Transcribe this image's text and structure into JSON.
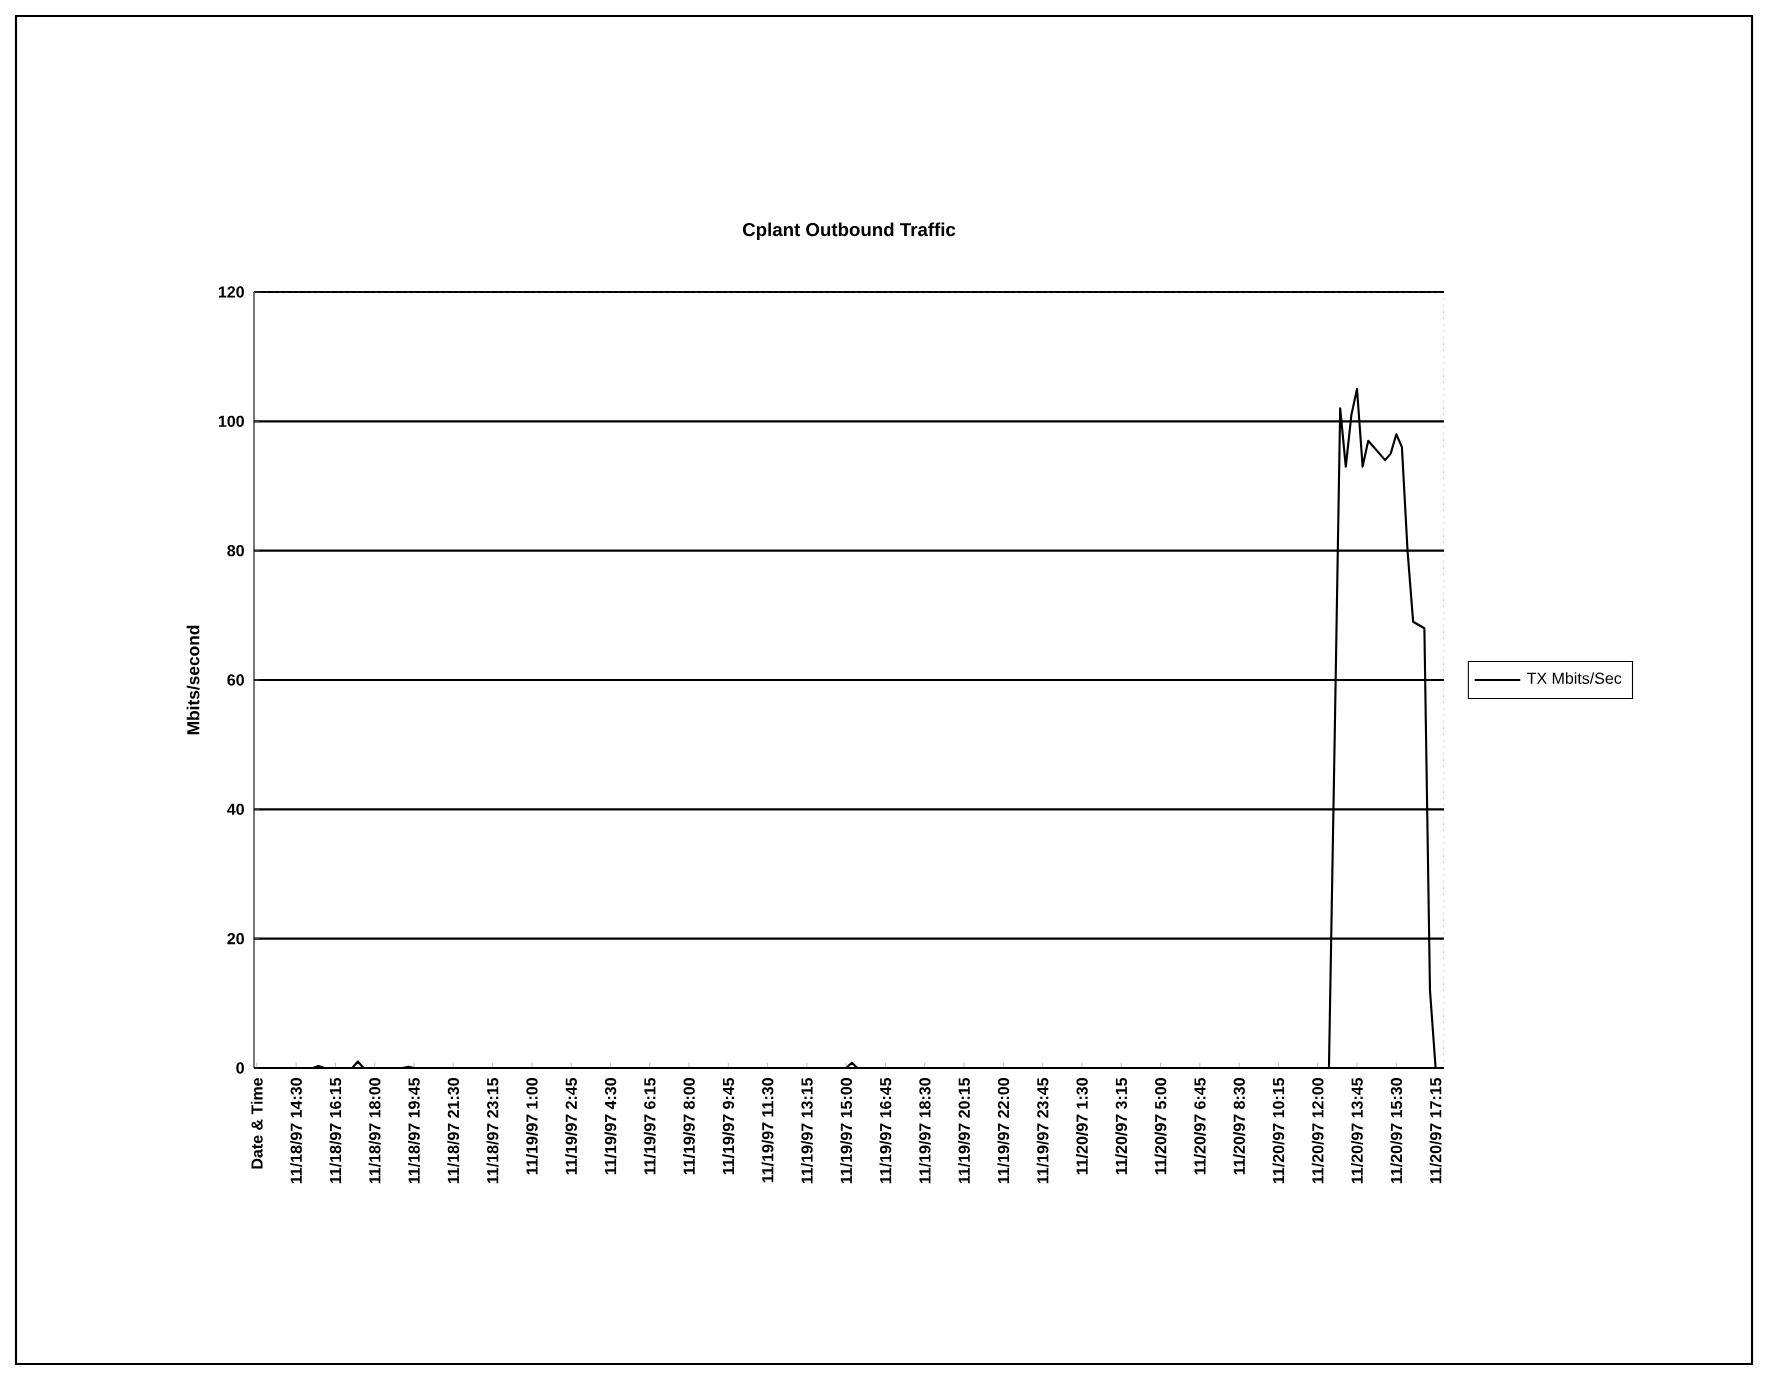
{
  "chart_data": {
    "type": "line",
    "title": "Cplant Outbound Traffic",
    "ylabel": "Mbits/second",
    "categories": [
      "Date & Time",
      null,
      null,
      null,
      null,
      null,
      null,
      "11/18/97 14:30",
      null,
      null,
      null,
      null,
      null,
      null,
      "11/18/97 16:15",
      null,
      null,
      null,
      null,
      null,
      null,
      "11/18/97 18:00",
      null,
      null,
      null,
      null,
      null,
      null,
      "11/18/97 19:45",
      null,
      null,
      null,
      null,
      null,
      null,
      "11/18/97 21:30",
      null,
      null,
      null,
      null,
      null,
      null,
      "11/18/97 23:15",
      null,
      null,
      null,
      null,
      null,
      null,
      "11/19/97 1:00",
      null,
      null,
      null,
      null,
      null,
      null,
      "11/19/97 2:45",
      null,
      null,
      null,
      null,
      null,
      null,
      "11/19/97 4:30",
      null,
      null,
      null,
      null,
      null,
      null,
      "11/19/97 6:15",
      null,
      null,
      null,
      null,
      null,
      null,
      "11/19/97 8:00",
      null,
      null,
      null,
      null,
      null,
      null,
      "11/19/97 9:45",
      null,
      null,
      null,
      null,
      null,
      null,
      "11/19/97 11:30",
      null,
      null,
      null,
      null,
      null,
      null,
      "11/19/97 13:15",
      null,
      null,
      null,
      null,
      null,
      null,
      "11/19/97 15:00",
      null,
      null,
      null,
      null,
      null,
      null,
      "11/19/97 16:45",
      null,
      null,
      null,
      null,
      null,
      null,
      "11/19/97 18:30",
      null,
      null,
      null,
      null,
      null,
      null,
      "11/19/97 20:15",
      null,
      null,
      null,
      null,
      null,
      null,
      "11/19/97 22:00",
      null,
      null,
      null,
      null,
      null,
      null,
      "11/19/97 23:45",
      null,
      null,
      null,
      null,
      null,
      null,
      "11/20/97 1:30",
      null,
      null,
      null,
      null,
      null,
      null,
      "11/20/97 3:15",
      null,
      null,
      null,
      null,
      null,
      null,
      "11/20/97 5:00",
      null,
      null,
      null,
      null,
      null,
      null,
      "11/20/97 6:45",
      null,
      null,
      null,
      null,
      null,
      null,
      "11/20/97 8:30",
      null,
      null,
      null,
      null,
      null,
      null,
      "11/20/97 10:15",
      null,
      null,
      null,
      null,
      null,
      null,
      "11/20/97 12:00",
      null,
      null,
      null,
      null,
      null,
      null,
      "11/20/97 13:45",
      null,
      null,
      null,
      null,
      null,
      null,
      "11/20/97 15:30",
      null,
      null,
      null,
      null,
      null,
      null,
      "11/20/97 17:15",
      null
    ],
    "series": [
      {
        "name": "TX Mbits/Sec",
        "color": "#000000",
        "values": [
          null,
          0,
          0,
          0,
          0,
          0,
          0,
          0,
          0,
          0,
          0,
          0.3,
          0,
          0,
          0,
          0,
          0,
          0,
          1,
          0,
          0,
          0,
          0,
          0,
          0,
          0,
          0,
          0.2,
          0,
          0,
          0,
          0,
          0,
          0,
          0,
          0,
          0,
          0,
          0,
          0,
          0,
          0,
          0,
          0,
          0,
          0,
          0,
          0,
          0,
          0,
          0,
          0,
          0,
          0,
          0,
          0,
          0,
          0,
          0,
          0,
          0,
          0,
          0,
          0,
          0,
          0,
          0,
          0,
          0,
          0,
          0,
          0,
          0,
          0,
          0,
          0,
          0,
          0,
          0,
          0,
          0,
          0,
          0,
          0,
          0,
          0,
          0,
          0,
          0,
          0,
          0,
          0,
          0,
          0,
          0,
          0,
          0,
          0,
          0,
          0,
          0,
          0,
          0,
          0,
          0,
          0,
          0.8,
          0,
          0,
          0,
          0,
          0,
          0,
          0,
          0,
          0,
          0,
          0,
          0,
          0,
          0,
          0,
          0,
          0,
          0,
          0,
          0,
          0,
          0,
          0,
          0,
          0,
          0,
          0,
          0,
          0,
          0,
          0,
          0,
          0,
          0,
          0,
          0,
          0,
          0,
          0,
          0,
          0,
          0,
          0,
          0,
          0,
          0,
          0,
          0,
          0,
          0,
          0,
          0,
          0,
          0,
          0,
          0,
          0,
          0,
          0,
          0,
          0,
          0,
          0,
          0,
          0,
          0,
          0,
          0,
          0,
          0,
          0,
          0,
          0,
          0,
          0,
          0,
          0,
          0,
          0,
          0,
          0,
          0,
          0,
          0,
          0,
          50,
          102,
          93,
          101,
          105,
          93,
          97,
          96,
          95,
          94,
          95,
          98,
          96,
          80,
          69,
          68.5,
          68,
          12,
          0,
          0
        ]
      }
    ],
    "ylim": [
      0,
      120
    ],
    "yticks": [
      0,
      20,
      40,
      60,
      80,
      100,
      120
    ],
    "grid": "y",
    "legend": "right",
    "marker": "none",
    "line_style": "solid"
  }
}
